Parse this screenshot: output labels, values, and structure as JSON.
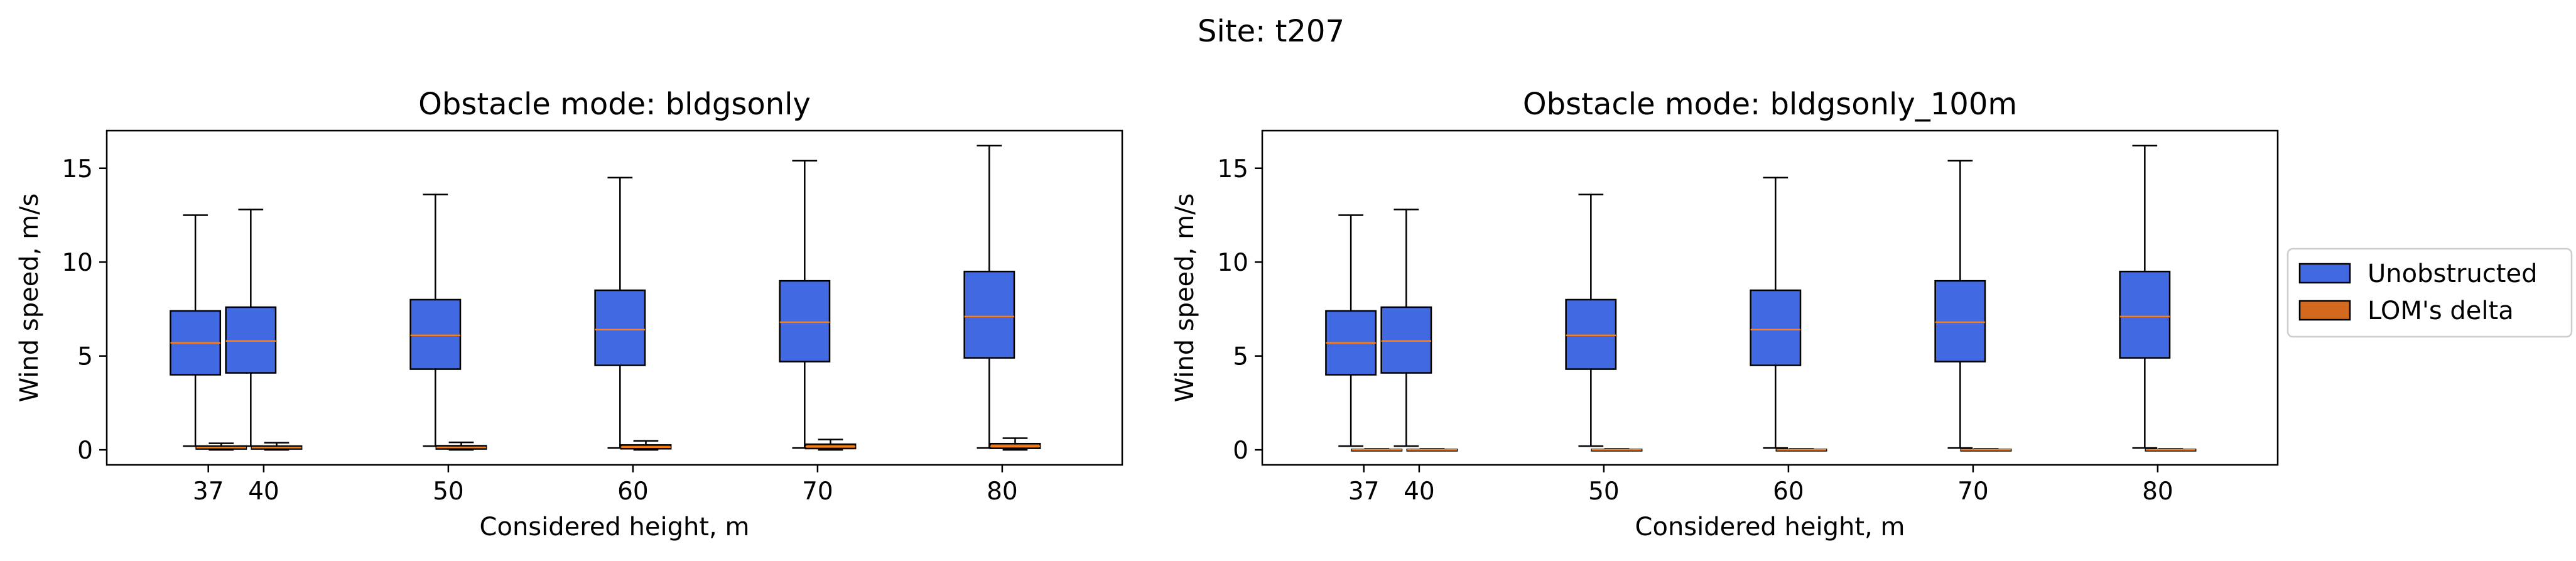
{
  "figure": {
    "suptitle": "Site: t207"
  },
  "chart_data": [
    {
      "type": "boxplot",
      "title": "Obstacle mode: bldgsonly",
      "xlabel": "Considered height, m",
      "ylabel": "Wind speed, m/s",
      "ylim": [
        -0.8,
        17
      ],
      "yticks": [
        0,
        5,
        10,
        15
      ],
      "xticks": [
        37,
        40,
        50,
        60,
        70,
        80
      ],
      "categories": [
        37,
        40,
        50,
        60,
        70,
        80
      ],
      "series": [
        {
          "name": "Unobstructed",
          "color": "#4169e1",
          "boxes": [
            {
              "x": 37,
              "whislo": 0.2,
              "q1": 4.0,
              "med": 5.7,
              "q3": 7.4,
              "whishi": 12.5
            },
            {
              "x": 40,
              "whislo": 0.2,
              "q1": 4.1,
              "med": 5.8,
              "q3": 7.6,
              "whishi": 12.8
            },
            {
              "x": 50,
              "whislo": 0.2,
              "q1": 4.3,
              "med": 6.1,
              "q3": 8.0,
              "whishi": 13.6
            },
            {
              "x": 60,
              "whislo": 0.1,
              "q1": 4.5,
              "med": 6.4,
              "q3": 8.5,
              "whishi": 14.5
            },
            {
              "x": 70,
              "whislo": 0.1,
              "q1": 4.7,
              "med": 6.8,
              "q3": 9.0,
              "whishi": 15.4
            },
            {
              "x": 80,
              "whislo": 0.1,
              "q1": 4.9,
              "med": 7.1,
              "q3": 9.5,
              "whishi": 16.2
            }
          ]
        },
        {
          "name": "LOM's delta",
          "color": "#d2691e",
          "boxes": [
            {
              "x": 37,
              "whislo": 0.0,
              "q1": 0.05,
              "med": 0.12,
              "q3": 0.2,
              "whishi": 0.35
            },
            {
              "x": 40,
              "whislo": 0.0,
              "q1": 0.05,
              "med": 0.12,
              "q3": 0.2,
              "whishi": 0.38
            },
            {
              "x": 50,
              "whislo": 0.0,
              "q1": 0.05,
              "med": 0.13,
              "q3": 0.22,
              "whishi": 0.4
            },
            {
              "x": 60,
              "whislo": 0.0,
              "q1": 0.06,
              "med": 0.15,
              "q3": 0.26,
              "whishi": 0.48
            },
            {
              "x": 70,
              "whislo": 0.0,
              "q1": 0.07,
              "med": 0.17,
              "q3": 0.3,
              "whishi": 0.55
            },
            {
              "x": 80,
              "whislo": 0.0,
              "q1": 0.08,
              "med": 0.19,
              "q3": 0.33,
              "whishi": 0.62
            }
          ]
        }
      ]
    },
    {
      "type": "boxplot",
      "title": "Obstacle mode: bldgsonly_100m",
      "xlabel": "Considered height, m",
      "ylabel": "Wind speed, m/s",
      "ylim": [
        -0.8,
        17
      ],
      "yticks": [
        0,
        5,
        10,
        15
      ],
      "xticks": [
        37,
        40,
        50,
        60,
        70,
        80
      ],
      "categories": [
        37,
        40,
        50,
        60,
        70,
        80
      ],
      "legend": "outside-right",
      "series": [
        {
          "name": "Unobstructed",
          "color": "#4169e1",
          "boxes": [
            {
              "x": 37,
              "whislo": 0.2,
              "q1": 4.0,
              "med": 5.7,
              "q3": 7.4,
              "whishi": 12.5
            },
            {
              "x": 40,
              "whislo": 0.2,
              "q1": 4.1,
              "med": 5.8,
              "q3": 7.6,
              "whishi": 12.8
            },
            {
              "x": 50,
              "whislo": 0.2,
              "q1": 4.3,
              "med": 6.1,
              "q3": 8.0,
              "whishi": 13.6
            },
            {
              "x": 60,
              "whislo": 0.1,
              "q1": 4.5,
              "med": 6.4,
              "q3": 8.5,
              "whishi": 14.5
            },
            {
              "x": 70,
              "whislo": 0.1,
              "q1": 4.7,
              "med": 6.8,
              "q3": 9.0,
              "whishi": 15.4
            },
            {
              "x": 80,
              "whislo": 0.1,
              "q1": 4.9,
              "med": 7.1,
              "q3": 9.5,
              "whishi": 16.2
            }
          ]
        },
        {
          "name": "LOM's delta",
          "color": "#d2691e",
          "boxes": [
            {
              "x": 37,
              "whislo": 0.0,
              "q1": 0.0,
              "med": 0.0,
              "q3": 0.02,
              "whishi": 0.05
            },
            {
              "x": 40,
              "whislo": 0.0,
              "q1": 0.0,
              "med": 0.0,
              "q3": 0.02,
              "whishi": 0.05
            },
            {
              "x": 50,
              "whislo": 0.0,
              "q1": 0.0,
              "med": 0.0,
              "q3": 0.02,
              "whishi": 0.05
            },
            {
              "x": 60,
              "whislo": 0.0,
              "q1": 0.0,
              "med": 0.0,
              "q3": 0.02,
              "whishi": 0.05
            },
            {
              "x": 70,
              "whislo": 0.0,
              "q1": 0.0,
              "med": 0.0,
              "q3": 0.02,
              "whishi": 0.05
            },
            {
              "x": 80,
              "whislo": 0.0,
              "q1": 0.0,
              "med": 0.0,
              "q3": 0.02,
              "whishi": 0.05
            }
          ]
        }
      ]
    }
  ],
  "legend": {
    "items": [
      {
        "label": "Unobstructed",
        "color": "#4169e1"
      },
      {
        "label": "LOM's delta",
        "color": "#d2691e"
      }
    ]
  },
  "style": {
    "median_color": "#ff7f0e",
    "edge_color": "#000000"
  }
}
